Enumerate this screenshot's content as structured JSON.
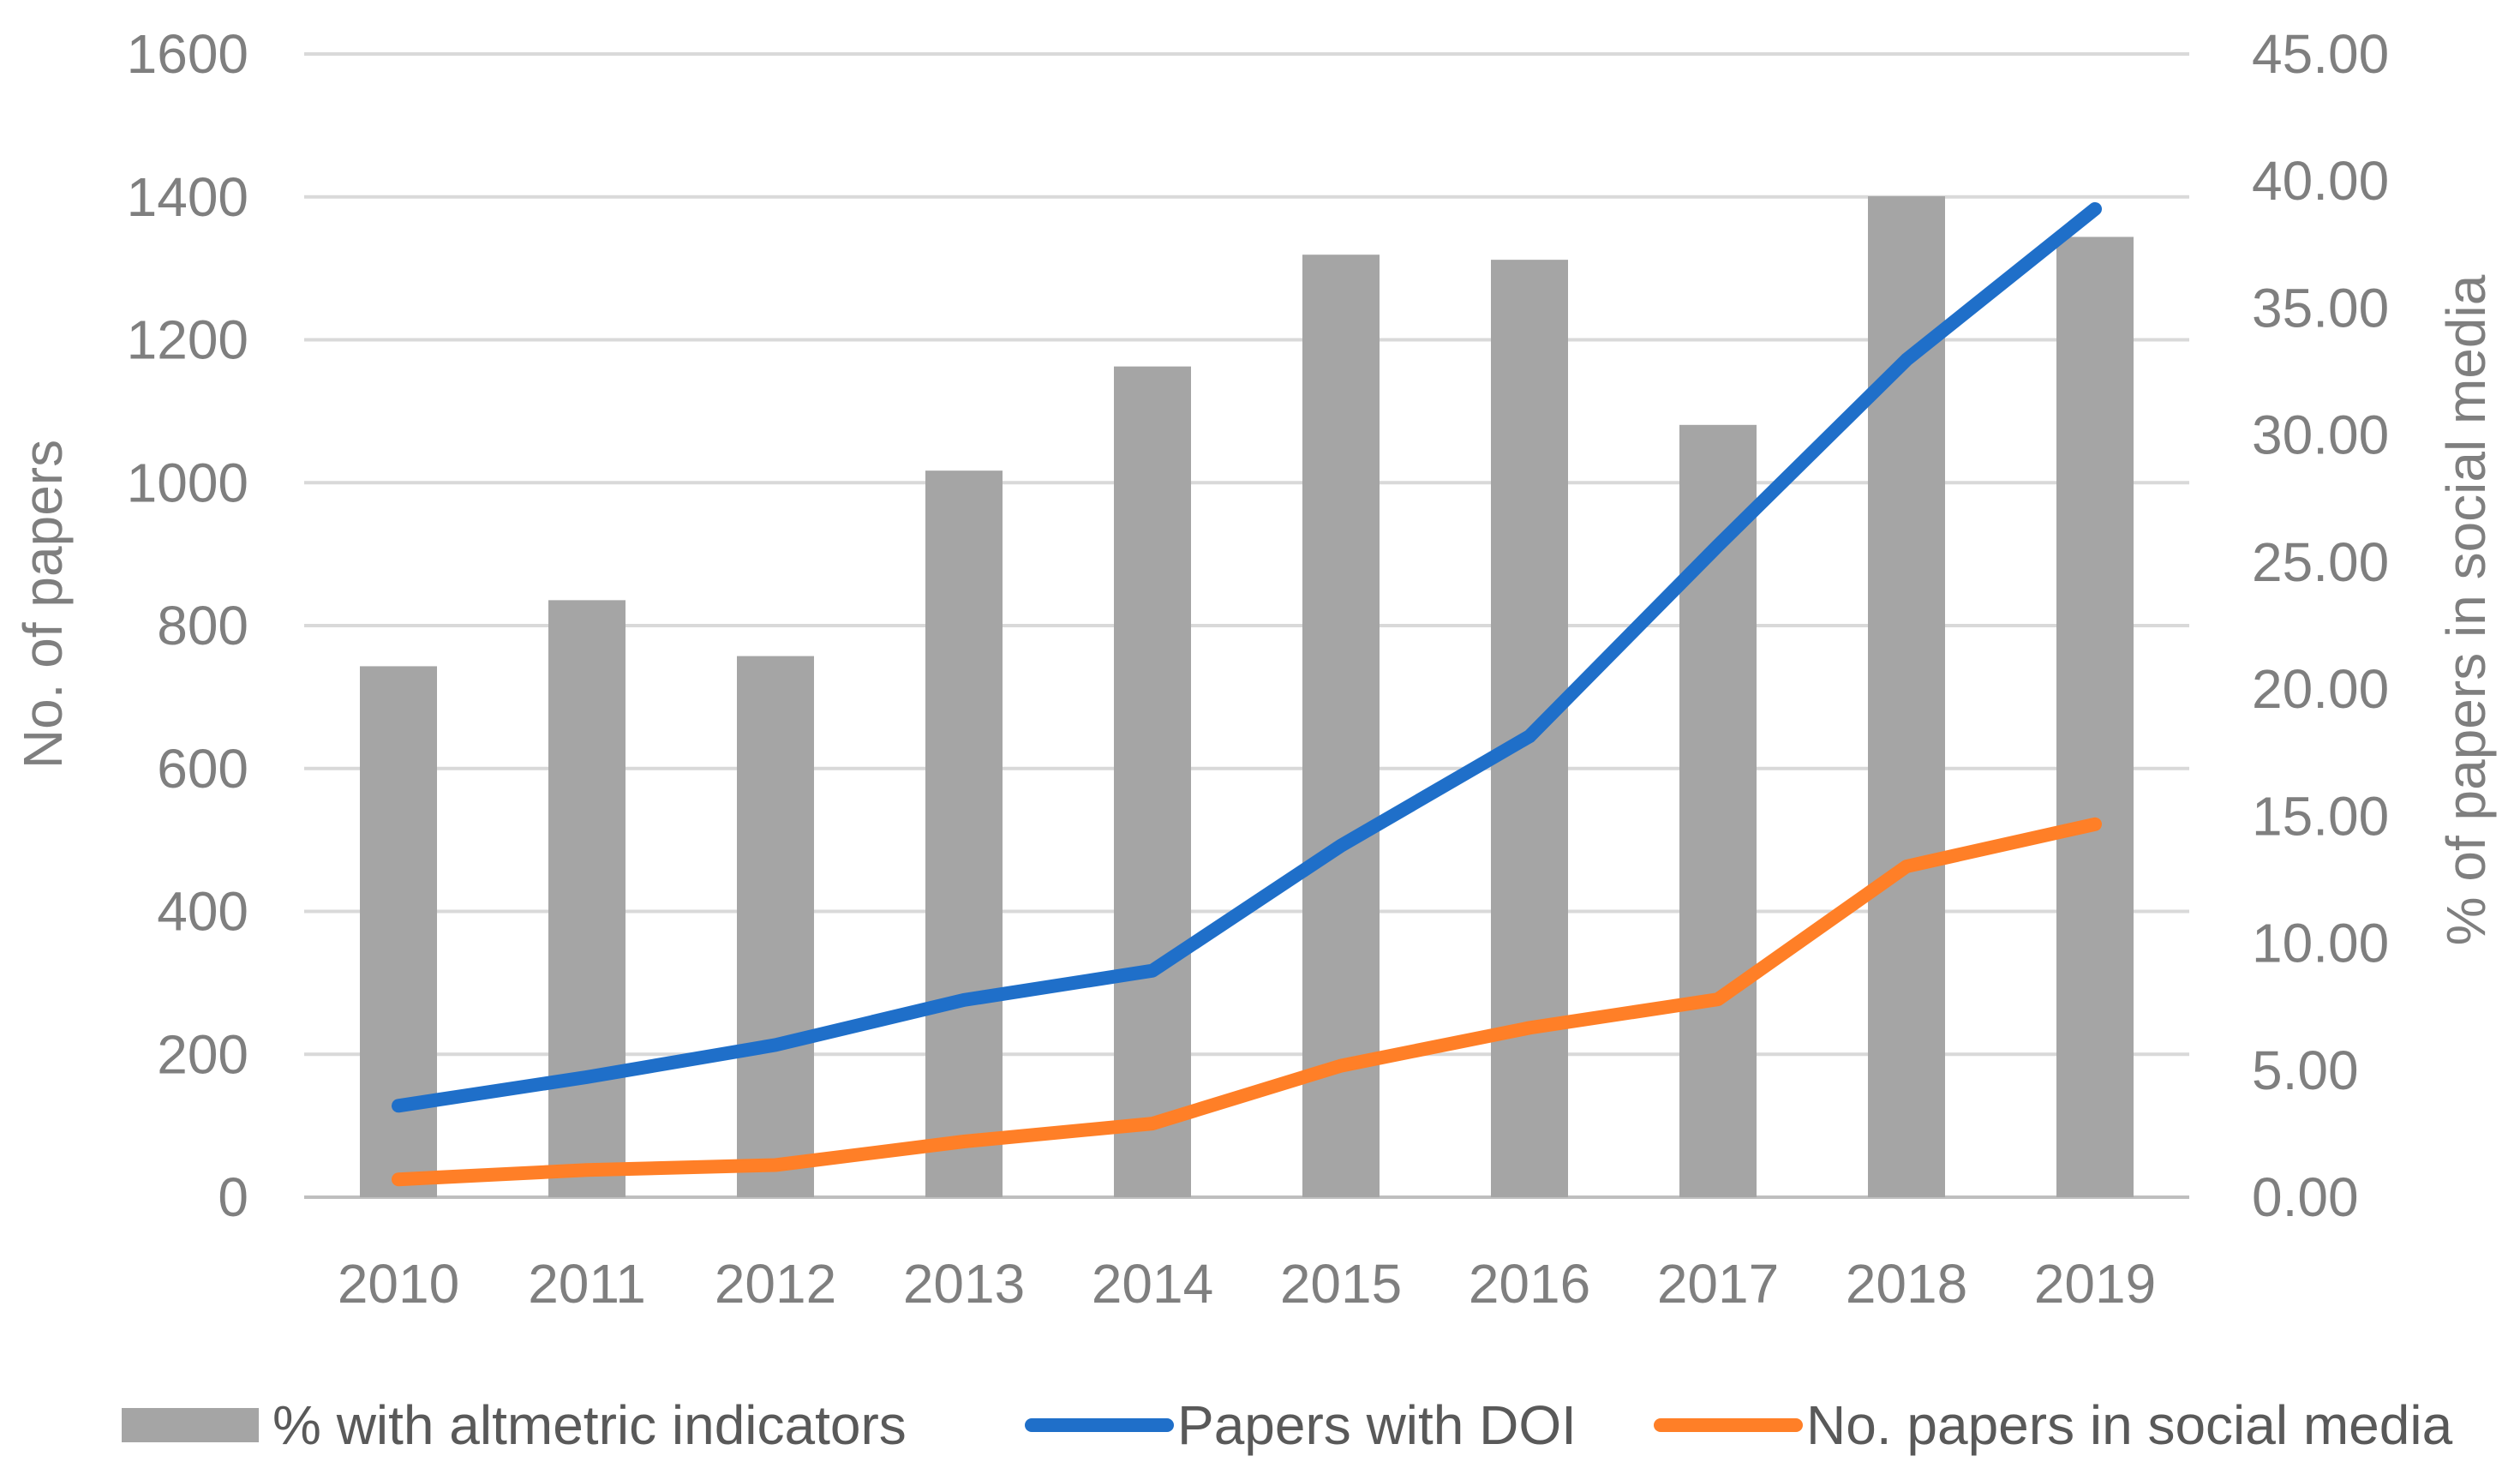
{
  "chart_data": {
    "type": "bar+line",
    "title": "",
    "categories": [
      "2010",
      "2011",
      "2012",
      "2013",
      "2014",
      "2015",
      "2016",
      "2017",
      "2018",
      "2019"
    ],
    "bar_series": {
      "name": "% with altmetric indicators",
      "axis": "right",
      "color": "#a5a5a5",
      "values": [
        20.9,
        23.5,
        21.3,
        28.6,
        32.7,
        37.1,
        36.9,
        30.4,
        39.4,
        37.8
      ]
    },
    "line_series": [
      {
        "name": "Papers with DOI",
        "axis": "left",
        "color": "#1f6fc9",
        "values": [
          128,
          168,
          213,
          276,
          317,
          492,
          645,
          912,
          1172,
          1383
        ]
      },
      {
        "name": "No. papers in social media",
        "axis": "left",
        "color": "#ff7f27",
        "values": [
          25,
          38,
          45,
          78,
          103,
          184,
          237,
          277,
          463,
          522
        ]
      }
    ],
    "left_axis": {
      "label": "No. of papers",
      "range": [
        0,
        1600
      ],
      "ticks": [
        "0",
        "200",
        "400",
        "600",
        "800",
        "1000",
        "1200",
        "1400",
        "1600"
      ]
    },
    "right_axis": {
      "label": "% of papers in social media",
      "range": [
        0,
        45
      ],
      "ticks": [
        "0.00",
        "5.00",
        "10.00",
        "15.00",
        "20.00",
        "25.00",
        "30.00",
        "35.00",
        "40.00",
        "45.00"
      ]
    },
    "grid": true,
    "legend_position": "bottom"
  }
}
